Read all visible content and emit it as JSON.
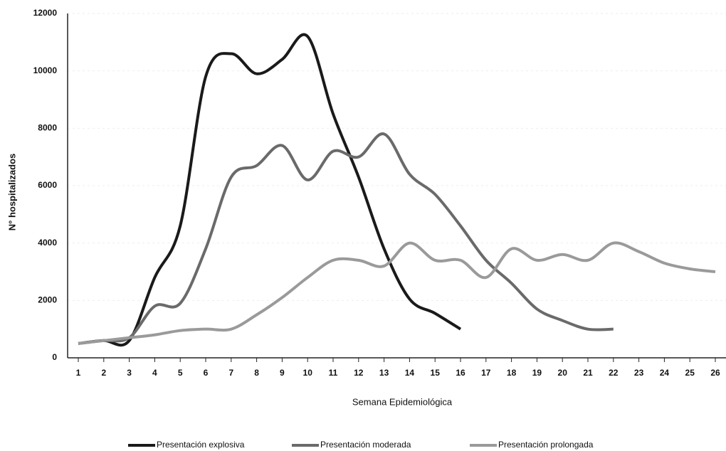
{
  "chart_data": {
    "type": "line",
    "x_label": "Semana Epidemiológica",
    "y_label": "N° hospitalizados",
    "categories": [
      1,
      2,
      3,
      4,
      5,
      6,
      7,
      8,
      9,
      10,
      11,
      12,
      13,
      14,
      15,
      16,
      17,
      18,
      19,
      20,
      21,
      22,
      23,
      24,
      25,
      26
    ],
    "series": [
      {
        "name": "Presentación explosiva",
        "color": "#1a1a1a",
        "values": [
          500,
          600,
          600,
          2800,
          4600,
          9800,
          10600,
          9900,
          10400,
          11200,
          8500,
          6300,
          3800,
          2050,
          1550,
          1000,
          null,
          null,
          null,
          null,
          null,
          null,
          null,
          null,
          null,
          null
        ]
      },
      {
        "name": "Presentación moderada",
        "color": "#6a6a6a",
        "values": [
          500,
          600,
          700,
          1800,
          1900,
          3800,
          6300,
          6700,
          7400,
          6200,
          7200,
          7000,
          7800,
          6400,
          5700,
          4600,
          3400,
          2600,
          1700,
          1300,
          1000,
          1000,
          null,
          null,
          null,
          null
        ]
      },
      {
        "name": "Presentación prolongada",
        "color": "#9a9a9a",
        "values": [
          500,
          600,
          700,
          800,
          950,
          1000,
          1000,
          1500,
          2100,
          2800,
          3400,
          3400,
          3200,
          4000,
          3400,
          3400,
          2800,
          3800,
          3400,
          3600,
          3400,
          4000,
          3700,
          3300,
          3100,
          3000
        ]
      }
    ],
    "ylim": [
      0,
      12000
    ],
    "yticks": [
      0,
      2000,
      4000,
      6000,
      8000,
      10000,
      12000
    ],
    "grid": true
  }
}
